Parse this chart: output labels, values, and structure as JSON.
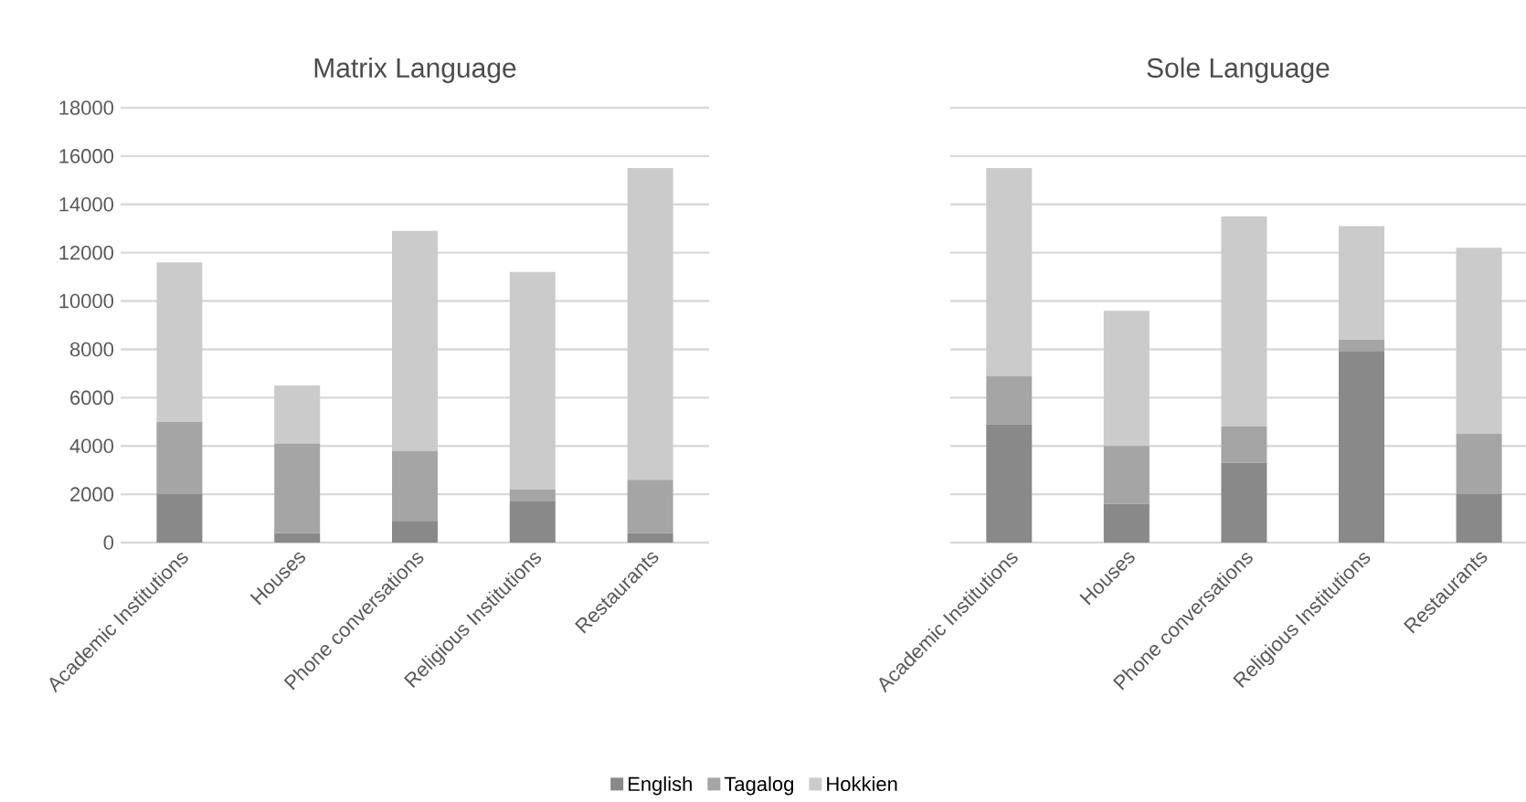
{
  "chart_data": [
    {
      "type": "bar",
      "title": "Matrix Language",
      "categories": [
        "Academic Institutions",
        "Houses",
        "Phone conversations",
        "Religious Institutions",
        "Restaurants"
      ],
      "stacked": true,
      "series": [
        {
          "name": "English",
          "color": "#898989",
          "values": [
            2000,
            400,
            900,
            1700,
            400
          ]
        },
        {
          "name": "Tagalog",
          "color": "#a5a5a5",
          "values": [
            3000,
            3700,
            2900,
            500,
            2200
          ]
        },
        {
          "name": "Hokkien",
          "color": "#cbcbcb",
          "values": [
            6600,
            2400,
            9100,
            9000,
            12900
          ]
        }
      ],
      "ylim": [
        0,
        18000
      ],
      "yticks": [
        0,
        2000,
        4000,
        6000,
        8000,
        10000,
        12000,
        14000,
        16000,
        18000
      ],
      "grid": "y",
      "legend": "bottom"
    },
    {
      "type": "bar",
      "title": "Sole Language",
      "categories": [
        "Academic Institutions",
        "Houses",
        "Phone conversations",
        "Religious Institutions",
        "Restaurants"
      ],
      "stacked": true,
      "series": [
        {
          "color": "#898989",
          "values": [
            4900,
            1600,
            3300,
            7900,
            2000
          ]
        },
        {
          "color": "#a5a5a5",
          "values": [
            2000,
            2400,
            1500,
            500,
            2500
          ]
        },
        {
          "color": "#cbcbcb",
          "values": [
            8600,
            5600,
            8700,
            4700,
            7700
          ]
        }
      ],
      "ylim": [
        0,
        18000
      ],
      "yticks": [
        0,
        2000,
        4000,
        6000,
        8000,
        10000,
        12000,
        14000,
        16000,
        18000
      ],
      "grid": "y",
      "tick_labels": "x"
    }
  ]
}
